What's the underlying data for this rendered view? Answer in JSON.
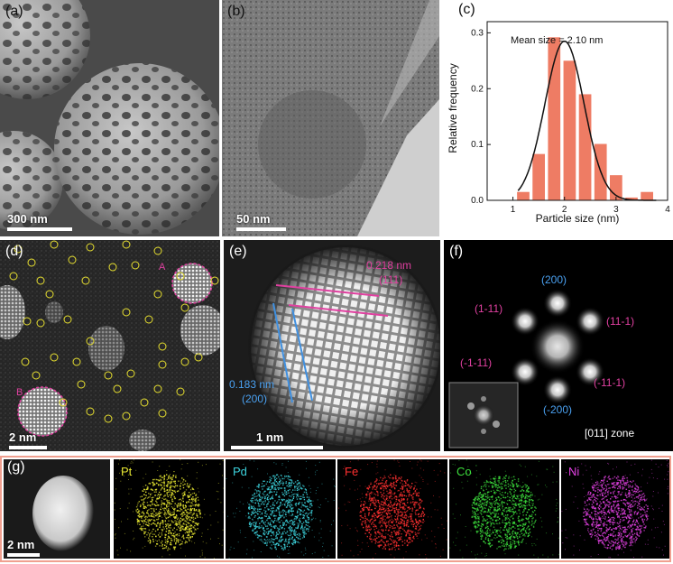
{
  "panel_a": {
    "label": "(a)",
    "scale": "300 nm"
  },
  "panel_b": {
    "label": "(b)",
    "scale": "50 nm"
  },
  "panel_c": {
    "label": "(c)"
  },
  "panel_d": {
    "label": "(d)",
    "scale": "2 nm",
    "marker_a": "A",
    "marker_b": "B"
  },
  "panel_e": {
    "label": "(e)",
    "scale": "1 nm",
    "spacing_111": "0.218 nm",
    "plane_111": "(111)",
    "spacing_200": "0.183 nm",
    "plane_200": "(200)"
  },
  "panel_f": {
    "label": "(f)",
    "zone": "[011] zone",
    "spots": [
      "(200)",
      "(1-11)",
      "(11-1)",
      "(-1-11)",
      "(-11-1)",
      "(-200)"
    ]
  },
  "panel_g": {
    "label": "(g)",
    "scale": "2 nm",
    "elements": [
      {
        "name": "Pt",
        "color": "#e6e632"
      },
      {
        "name": "Pd",
        "color": "#3cd2dc"
      },
      {
        "name": "Fe",
        "color": "#ff3030"
      },
      {
        "name": "Co",
        "color": "#3cdc3c"
      },
      {
        "name": "Ni",
        "color": "#e040e0"
      }
    ]
  },
  "chart_data": {
    "type": "bar",
    "title": "",
    "xlabel": "Particle size (nm)",
    "ylabel": "Relative frequency",
    "xlim": [
      0.5,
      4
    ],
    "ylim": [
      0,
      0.32
    ],
    "xticks": [
      "1",
      "2",
      "3",
      "4"
    ],
    "yticks": [
      "0.0",
      "0.1",
      "0.2",
      "0.3"
    ],
    "annotation": "Mean size = 2.10 nm",
    "bar_color": "#ee7c64",
    "x": [
      1.2,
      1.5,
      1.8,
      2.1,
      2.4,
      2.7,
      3.0,
      3.3,
      3.6
    ],
    "values": [
      0.015,
      0.083,
      0.292,
      0.25,
      0.19,
      0.101,
      0.045,
      0.005,
      0.015
    ],
    "fit_curve": {
      "type": "gaussian",
      "center": 2.0,
      "amplitude": 0.285
    }
  }
}
